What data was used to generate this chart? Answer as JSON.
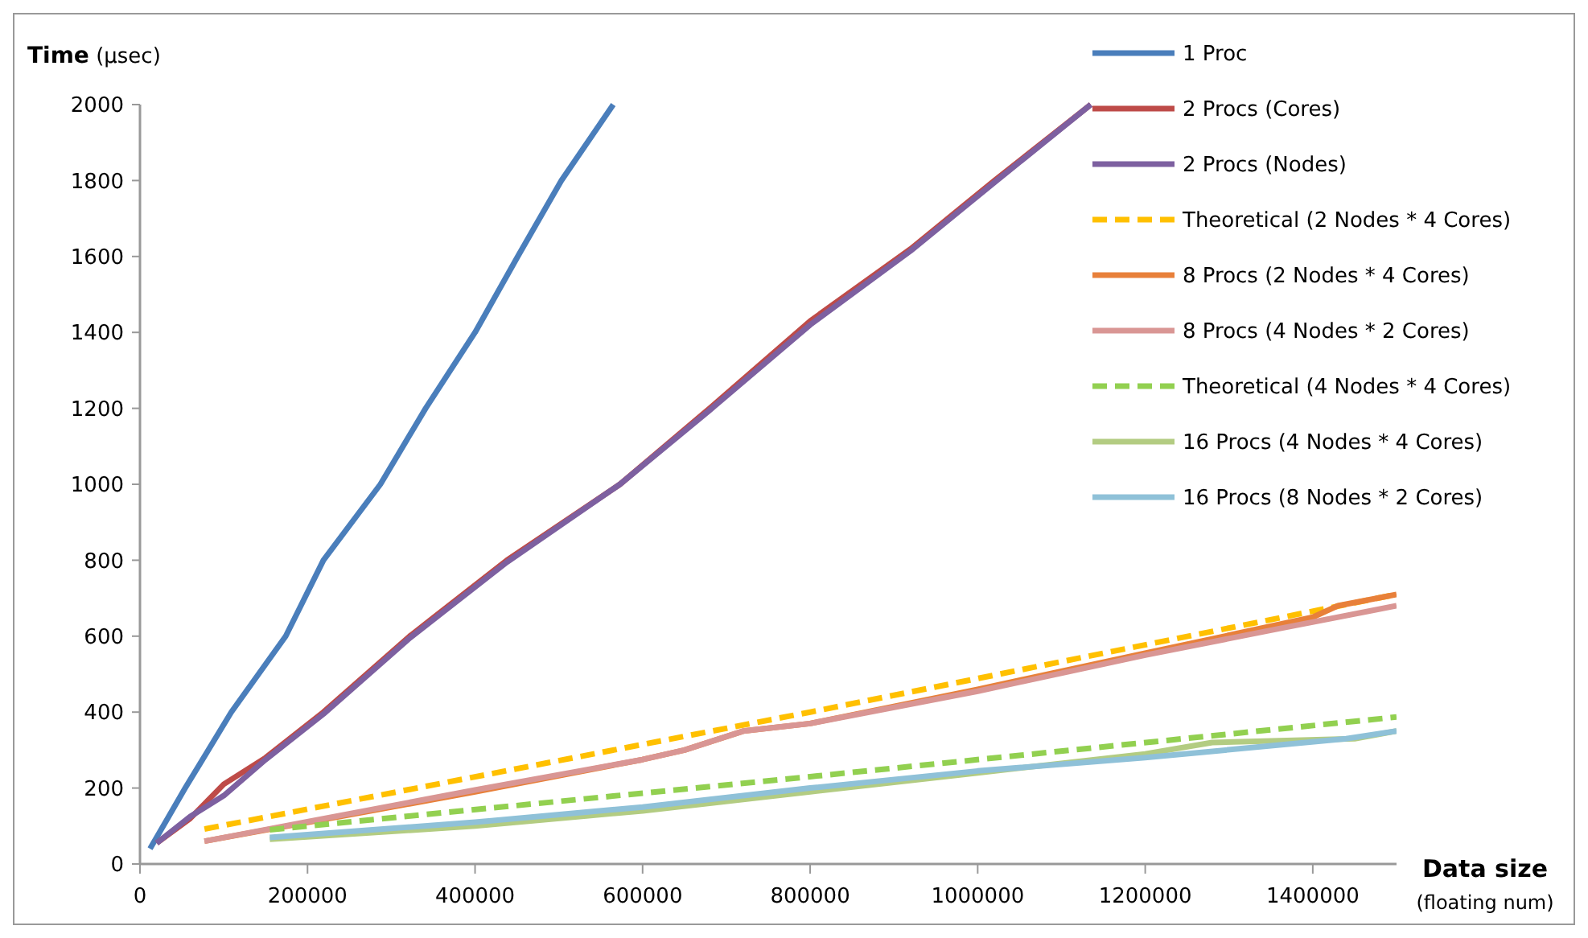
{
  "chart_data": {
    "type": "line",
    "xlabel": "Data size (floating num)",
    "ylabel": "Time (µsec)",
    "xlim": [
      0,
      1500000
    ],
    "ylim": [
      0,
      2000
    ],
    "xticks": [
      0,
      200000,
      400000,
      600000,
      800000,
      1000000,
      1200000,
      1400000
    ],
    "yticks": [
      0,
      200,
      400,
      600,
      800,
      1000,
      1200,
      1400,
      1600,
      1800,
      2000
    ],
    "grid": false,
    "legend": "top right",
    "marker": "none",
    "series": [
      {
        "name": "1 Proc",
        "color": "#4a7ebb",
        "line_style": "solid",
        "x": [
          12000,
          54000,
          109000,
          174000,
          219000,
          287000,
          341000,
          400000,
          451000,
          503000,
          565000
        ],
        "values": [
          40,
          200,
          400,
          600,
          800,
          1000,
          1200,
          1400,
          1600,
          1800,
          2000
        ]
      },
      {
        "name": "2 Procs (Cores)",
        "color": "#be4b48",
        "line_style": "solid",
        "x": [
          20000,
          60000,
          100000,
          150000,
          219000,
          322000,
          438000,
          573000,
          680000,
          800000,
          920000,
          1020000,
          1135000
        ],
        "values": [
          55,
          120,
          210,
          280,
          400,
          600,
          800,
          1000,
          1200,
          1430,
          1620,
          1800,
          2000
        ]
      },
      {
        "name": "2 Procs (Nodes)",
        "color": "#7d60a0",
        "line_style": "solid",
        "x": [
          20000,
          60000,
          100000,
          150000,
          219000,
          322000,
          438000,
          573000,
          680000,
          800000,
          920000,
          1020000,
          1135000
        ],
        "values": [
          55,
          125,
          180,
          275,
          395,
          595,
          795,
          1000,
          1195,
          1420,
          1615,
          1795,
          2000
        ]
      },
      {
        "name": "Theoretical (2 Nodes * 4 Cores)",
        "color": "#ffc000",
        "line_style": "dashed",
        "x": [
          77000,
          800000,
          1500000
        ],
        "values": [
          92,
          400,
          710
        ]
      },
      {
        "name": "8 Procs (2 Nodes * 4 Cores)",
        "color": "#e8803a",
        "line_style": "solid",
        "x": [
          77000,
          400000,
          600000,
          650000,
          720000,
          800000,
          1000000,
          1200000,
          1400000,
          1430000,
          1500000
        ],
        "values": [
          60,
          190,
          275,
          300,
          350,
          370,
          460,
          555,
          650,
          680,
          710
        ]
      },
      {
        "name": "8 Procs (4 Nodes * 2 Cores)",
        "color": "#d99694",
        "line_style": "solid",
        "x": [
          77000,
          400000,
          600000,
          650000,
          720000,
          800000,
          1000000,
          1200000,
          1360000,
          1500000
        ],
        "values": [
          60,
          195,
          275,
          300,
          350,
          370,
          455,
          550,
          620,
          680
        ]
      },
      {
        "name": "Theoretical (4 Nodes * 4 Cores)",
        "color": "#92d050",
        "line_style": "dashed",
        "x": [
          155000,
          800000,
          1500000
        ],
        "values": [
          90,
          230,
          387
        ]
      },
      {
        "name": "16 Procs (4 Nodes * 4 Cores)",
        "color": "#b3cc82",
        "line_style": "solid",
        "x": [
          155000,
          400000,
          600000,
          800000,
          1000000,
          1200000,
          1280000,
          1450000,
          1500000
        ],
        "values": [
          65,
          100,
          140,
          190,
          240,
          290,
          320,
          330,
          350
        ]
      },
      {
        "name": "16 Procs (8 Nodes * 2 Cores)",
        "color": "#8fc1d8",
        "line_style": "solid",
        "x": [
          155000,
          400000,
          600000,
          800000,
          1000000,
          1200000,
          1440000,
          1500000
        ],
        "values": [
          70,
          110,
          150,
          200,
          245,
          280,
          330,
          350
        ]
      }
    ]
  }
}
